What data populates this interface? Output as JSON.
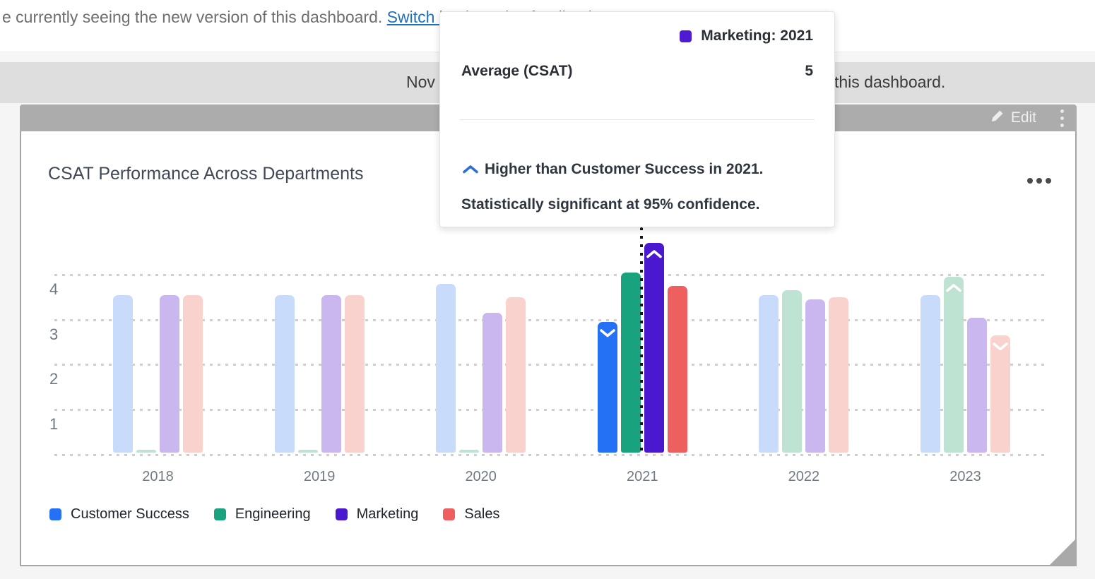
{
  "top_notice": {
    "text": "e currently seeing the new version of this dashboard. ",
    "link_text": "Switch back to give feedback"
  },
  "version_banner": {
    "left_fragment": "Nov",
    "right_fragment": "this dashboard."
  },
  "widget_toolbar": {
    "edit_label": "Edit"
  },
  "tooltip": {
    "header": "Marketing: 2021",
    "swatch_color": "#4e1bd2",
    "metric_label": "Average (CSAT)",
    "metric_value": "5",
    "insight_line1": "Higher than Customer Success in 2021.",
    "insight_line2": "Statistically significant at 95% confidence.",
    "caret_color": "#2e6fd6",
    "caret_direction": "up"
  },
  "chart_data": {
    "type": "bar",
    "title": "CSAT Performance Across Departments",
    "categories": [
      "2018",
      "2019",
      "2020",
      "2021",
      "2022",
      "2023"
    ],
    "series": [
      {
        "name": "Customer Success",
        "color": "#2471f5",
        "faded_color": "#c9dbfb",
        "values": [
          3.5,
          3.5,
          3.75,
          2.9,
          3.5,
          3.5
        ]
      },
      {
        "name": "Engineering",
        "color": "#18a37e",
        "faded_color": "#bfe3d3",
        "values": [
          0.06,
          0.06,
          0.06,
          4.0,
          3.6,
          3.9
        ]
      },
      {
        "name": "Marketing",
        "color": "#4a18ce",
        "faded_color": "#cbb7ef",
        "values": [
          3.5,
          3.5,
          3.1,
          4.65,
          3.4,
          3.0
        ]
      },
      {
        "name": "Sales",
        "color": "#ee5f60",
        "faded_color": "#f9d2ce",
        "values": [
          3.5,
          3.5,
          3.45,
          3.7,
          3.45,
          2.6
        ]
      }
    ],
    "markers": [
      {
        "series": "Customer Success",
        "category": "2021",
        "direction": "down"
      },
      {
        "series": "Marketing",
        "category": "2021",
        "direction": "up"
      },
      {
        "series": "Engineering",
        "category": "2023",
        "direction": "up"
      },
      {
        "series": "Sales",
        "category": "2023",
        "direction": "down"
      }
    ],
    "highlighted_category": "2021",
    "hovered_bar": {
      "series": "Marketing",
      "category": "2021"
    },
    "ylabel": "",
    "xlabel": "",
    "yticks": [
      1,
      2,
      3,
      4
    ],
    "ylim": [
      0,
      5
    ],
    "grid": "dotted-horizontal",
    "legend_position": "bottom-left"
  }
}
